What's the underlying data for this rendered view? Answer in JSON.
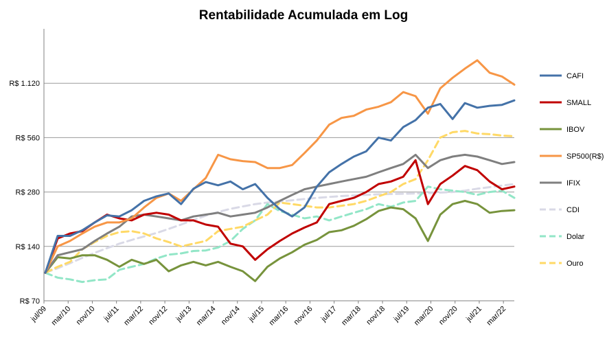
{
  "chart_data": {
    "type": "line",
    "title": "Rentabilidade Acumulada em Log",
    "xlabel": "",
    "ylabel": "",
    "y_scale": "log",
    "ylim": [
      70,
      2240
    ],
    "y_ticks": [
      {
        "value": 70,
        "label": "R$ 70"
      },
      {
        "value": 140,
        "label": "R$ 140"
      },
      {
        "value": 280,
        "label": "R$ 280"
      },
      {
        "value": 560,
        "label": "R$ 560"
      },
      {
        "value": 1120,
        "label": "R$ 1.120"
      }
    ],
    "x_ticks": [
      "jul/09",
      "mar/10",
      "nov/10",
      "jul/11",
      "mar/12",
      "nov/12",
      "jul/13",
      "mar/14",
      "nov/14",
      "jul/15",
      "mar/16",
      "nov/16",
      "jul/17",
      "mar/18",
      "nov/18",
      "jul/19",
      "mar/20",
      "nov/20",
      "jul/21",
      "mar/22"
    ],
    "grid": true,
    "legend_position": "right",
    "series": [
      {
        "name": "CAFI",
        "color": "#4472a8",
        "dash": "solid",
        "values": [
          100,
          160,
          160,
          172,
          190,
          208,
          205,
          222,
          250,
          265,
          275,
          240,
          292,
          318,
          305,
          320,
          290,
          310,
          260,
          225,
          205,
          230,
          300,
          360,
          400,
          440,
          470,
          560,
          540,
          640,
          700,
          820,
          860,
          710,
          870,
          820,
          840,
          850,
          900
        ]
      },
      {
        "name": "SMALL",
        "color": "#c00000",
        "dash": "solid",
        "values": [
          100,
          155,
          165,
          170,
          190,
          210,
          200,
          195,
          210,
          215,
          210,
          195,
          195,
          185,
          180,
          145,
          140,
          118,
          135,
          150,
          165,
          178,
          190,
          240,
          250,
          260,
          280,
          310,
          320,
          340,
          420,
          240,
          310,
          345,
          390,
          370,
          320,
          290,
          300
        ]
      },
      {
        "name": "IBOV",
        "color": "#77933c",
        "dash": "solid",
        "values": [
          100,
          122,
          120,
          125,
          125,
          118,
          108,
          118,
          112,
          118,
          102,
          110,
          115,
          110,
          115,
          108,
          102,
          90,
          108,
          120,
          130,
          143,
          152,
          168,
          172,
          182,
          198,
          220,
          230,
          225,
          200,
          150,
          210,
          240,
          250,
          240,
          215,
          220,
          222
        ]
      },
      {
        "name": "SP500(R$)",
        "color": "#f79646",
        "dash": "solid",
        "values": [
          100,
          140,
          150,
          165,
          180,
          190,
          190,
          200,
          230,
          260,
          275,
          250,
          290,
          335,
          450,
          425,
          415,
          410,
          380,
          380,
          395,
          460,
          540,
          660,
          720,
          740,
          800,
          830,
          880,
          1000,
          950,
          760,
          1050,
          1200,
          1350,
          1500,
          1280,
          1220,
          1100
        ]
      },
      {
        "name": "IFIX",
        "color": "#7f7f7f",
        "dash": "solid",
        "values": [
          100,
          125,
          130,
          135,
          150,
          165,
          180,
          205,
          210,
          205,
          200,
          195,
          205,
          210,
          215,
          205,
          210,
          215,
          230,
          250,
          270,
          290,
          300,
          310,
          320,
          330,
          340,
          360,
          380,
          400,
          450,
          380,
          420,
          440,
          450,
          440,
          420,
          400,
          410
        ]
      },
      {
        "name": "CDI",
        "color": "#d9d9e6",
        "dash": "dashed",
        "values": [
          100,
          106,
          113,
          121,
          129,
          137,
          145,
          152,
          159,
          166,
          175,
          185,
          196,
          207,
          217,
          226,
          233,
          240,
          245,
          248,
          252,
          256,
          260,
          263,
          266,
          268,
          270,
          272,
          273,
          274,
          275,
          276,
          278,
          280,
          285,
          292,
          298,
          304,
          310
        ]
      },
      {
        "name": "Dolar",
        "color": "#92e6c7",
        "dash": "dashed",
        "values": [
          100,
          94,
          92,
          89,
          91,
          92,
          104,
          108,
          112,
          120,
          126,
          128,
          132,
          133,
          138,
          150,
          175,
          195,
          240,
          220,
          210,
          200,
          205,
          195,
          205,
          215,
          225,
          240,
          232,
          245,
          250,
          300,
          290,
          285,
          280,
          270,
          280,
          285,
          260
        ]
      },
      {
        "name": "Ouro",
        "color": "#ffd966",
        "dash": "dashed",
        "values": [
          100,
          108,
          115,
          135,
          148,
          160,
          168,
          170,
          165,
          155,
          148,
          140,
          145,
          150,
          170,
          175,
          180,
          195,
          210,
          245,
          240,
          235,
          230,
          230,
          235,
          240,
          250,
          265,
          280,
          310,
          330,
          420,
          560,
          600,
          610,
          590,
          585,
          575,
          570
        ]
      }
    ]
  }
}
